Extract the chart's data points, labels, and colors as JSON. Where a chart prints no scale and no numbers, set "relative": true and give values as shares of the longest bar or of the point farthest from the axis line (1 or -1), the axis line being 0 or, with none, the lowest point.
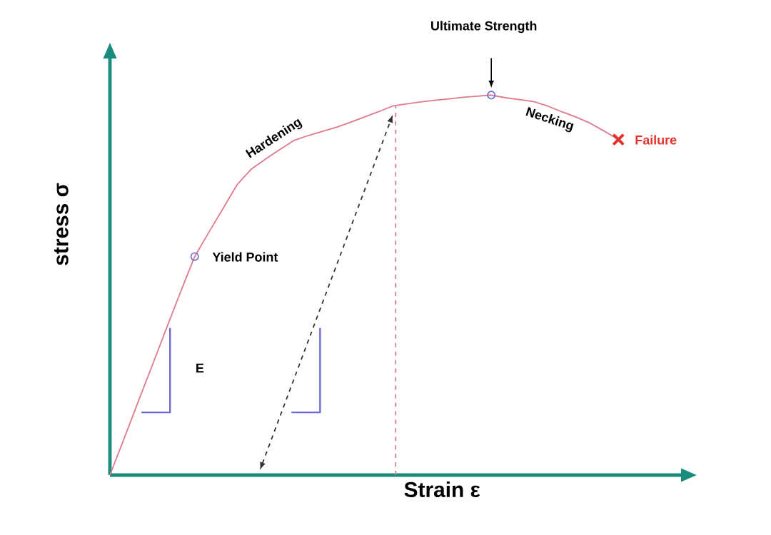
{
  "chart_data": {
    "type": "line",
    "relative": true,
    "xlabel": "Strain ε",
    "ylabel": "stress σ",
    "categories": [
      null,
      null,
      null,
      null,
      null,
      null,
      null,
      null,
      null,
      null,
      null,
      null,
      null,
      null,
      null,
      null,
      null,
      null,
      null,
      null,
      null,
      null,
      null,
      null,
      null,
      null,
      null,
      null,
      null,
      null,
      null,
      null,
      null,
      null,
      null,
      null,
      null
    ],
    "series": [
      {
        "color": "#e07a8a",
        "values": [
          0,
          0.096,
          0.193,
          0.289,
          0.386,
          0.482,
          0.575,
          0.639,
          0.701,
          0.764,
          0.805,
          0.831,
          0.856,
          0.88,
          0.893,
          0.904,
          0.915,
          0.928,
          0.942,
          0.956,
          0.971,
          0.977,
          0.982,
          0.986,
          0.99,
          0.994,
          0.997,
          1,
          0.993,
          0.988,
          0.983,
          0.971,
          0.956,
          0.942,
          0.926,
          0.905,
          0.883
        ]
      }
    ],
    "annotations": [
      "Hardening",
      "Necking",
      "Yield Point",
      "Ultimate Strength",
      "Failure",
      "E"
    ]
  }
}
